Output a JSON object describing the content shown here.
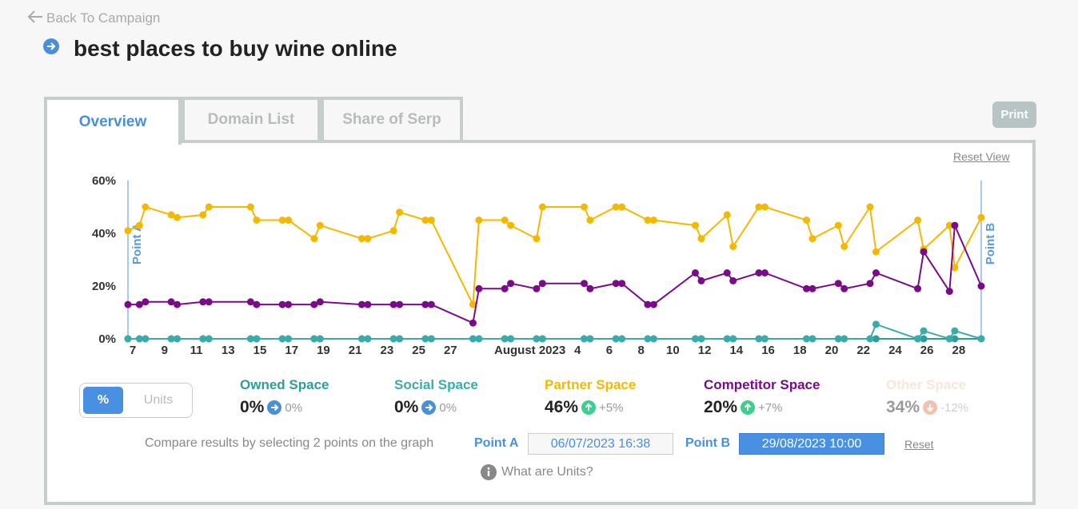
{
  "back_link": "Back To Campaign",
  "title": "best places to buy wine online",
  "tabs": [
    "Overview",
    "Domain List",
    "Share of Serp"
  ],
  "print": "Print",
  "reset_view": "Reset View",
  "chart_data": {
    "type": "line",
    "x": [
      "2023-07-06T16:38",
      "2023-07-07T10:00",
      "2023-07-07T19:00",
      "2023-07-09T10:00",
      "2023-07-09T19:00",
      "2023-07-11T10:00",
      "2023-07-11T19:00",
      "2023-07-14T10:00",
      "2023-07-14T19:00",
      "2023-07-16T10:00",
      "2023-07-16T19:00",
      "2023-07-18T10:00",
      "2023-07-18T19:00",
      "2023-07-21T10:00",
      "2023-07-21T19:00",
      "2023-07-23T10:00",
      "2023-07-23T19:00",
      "2023-07-25T10:00",
      "2023-07-25T19:00",
      "2023-07-28T10:00",
      "2023-07-28T19:00",
      "2023-07-30T10:00",
      "2023-07-30T19:00",
      "2023-08-01T10:00",
      "2023-08-01T19:00",
      "2023-08-04T10:00",
      "2023-08-04T19:00",
      "2023-08-06T10:00",
      "2023-08-06T19:00",
      "2023-08-08T10:00",
      "2023-08-08T19:00",
      "2023-08-11T10:00",
      "2023-08-11T19:00",
      "2023-08-13T10:00",
      "2023-08-13T19:00",
      "2023-08-15T10:00",
      "2023-08-15T19:00",
      "2023-08-18T10:00",
      "2023-08-18T19:00",
      "2023-08-20T10:00",
      "2023-08-20T19:00",
      "2023-08-22T10:00",
      "2023-08-22T19:00",
      "2023-08-25T10:00",
      "2023-08-25T19:00",
      "2023-08-27T10:00",
      "2023-08-27T18:00",
      "2023-08-29T10:00"
    ],
    "series": [
      {
        "name": "Owned Space",
        "color": "#2a9d9d",
        "values": [
          0,
          0,
          0,
          0,
          0,
          0,
          0,
          0,
          0,
          0,
          0,
          0,
          0,
          0,
          0,
          0,
          0,
          0,
          0,
          0,
          0,
          0,
          0,
          0,
          0,
          0,
          0,
          0,
          0,
          0,
          0,
          0,
          0,
          0,
          0,
          0,
          0,
          0,
          0,
          0,
          0,
          0,
          0,
          0,
          0,
          0,
          0,
          0
        ]
      },
      {
        "name": "Social Space",
        "color": "#3aabab",
        "values": [
          0,
          0,
          0,
          0,
          0,
          0,
          0,
          0,
          0,
          0,
          0,
          0,
          0,
          0,
          0,
          0,
          0,
          0,
          0,
          0,
          0,
          0,
          0,
          0,
          0,
          0,
          0,
          0,
          0,
          0,
          0,
          0,
          0,
          0,
          0,
          0,
          0,
          0,
          0,
          0,
          0,
          0,
          5.5,
          0,
          3,
          0,
          3,
          0
        ]
      },
      {
        "name": "Partner Space",
        "color": "#f5b800",
        "values": [
          41,
          43,
          50,
          47,
          46,
          47,
          50,
          50,
          45,
          45,
          45,
          38,
          43,
          38,
          38,
          41,
          48,
          45,
          45,
          13,
          45,
          45,
          43,
          38,
          50,
          50,
          45,
          50,
          50,
          45,
          45,
          43,
          38,
          47,
          35,
          50,
          50,
          45,
          38,
          43,
          35,
          50,
          33,
          45,
          34,
          43,
          27,
          46
        ]
      },
      {
        "name": "Competitor Space",
        "color": "#7a0a8a",
        "values": [
          13,
          13,
          14,
          14,
          13,
          14,
          14,
          14,
          13,
          13,
          13,
          13,
          14,
          13,
          13,
          13,
          13,
          13,
          13,
          6,
          19,
          19,
          21,
          19,
          21,
          21,
          19,
          21,
          21,
          13,
          13,
          25,
          22,
          25,
          22,
          25,
          25,
          19,
          19,
          21,
          19,
          21,
          25,
          19,
          33,
          18,
          43,
          20
        ]
      }
    ],
    "xlim": [
      "2023-07-06T16:38",
      "2023-08-29T10:00"
    ],
    "xticks": [
      {
        "value": "2023-07-07",
        "label": "7"
      },
      {
        "value": "2023-07-09",
        "label": "9"
      },
      {
        "value": "2023-07-11",
        "label": "11"
      },
      {
        "value": "2023-07-13",
        "label": "13"
      },
      {
        "value": "2023-07-15",
        "label": "15"
      },
      {
        "value": "2023-07-17",
        "label": "17"
      },
      {
        "value": "2023-07-19",
        "label": "19"
      },
      {
        "value": "2023-07-21",
        "label": "21"
      },
      {
        "value": "2023-07-23",
        "label": "23"
      },
      {
        "value": "2023-07-25",
        "label": "25"
      },
      {
        "value": "2023-07-27",
        "label": "27"
      },
      {
        "value": "2023-08-01",
        "label": "August 2023"
      },
      {
        "value": "2023-08-04",
        "label": "4"
      },
      {
        "value": "2023-08-06",
        "label": "6"
      },
      {
        "value": "2023-08-08",
        "label": "8"
      },
      {
        "value": "2023-08-10",
        "label": "10"
      },
      {
        "value": "2023-08-12",
        "label": "12"
      },
      {
        "value": "2023-08-14",
        "label": "14"
      },
      {
        "value": "2023-08-16",
        "label": "16"
      },
      {
        "value": "2023-08-18",
        "label": "18"
      },
      {
        "value": "2023-08-20",
        "label": "20"
      },
      {
        "value": "2023-08-22",
        "label": "22"
      },
      {
        "value": "2023-08-24",
        "label": "24"
      },
      {
        "value": "2023-08-26",
        "label": "26"
      },
      {
        "value": "2023-08-28",
        "label": "28"
      }
    ],
    "ylim": [
      0,
      60
    ],
    "yticks": [
      {
        "value": 0,
        "label": "0%"
      },
      {
        "value": 20,
        "label": "20%"
      },
      {
        "value": 40,
        "label": "40%"
      },
      {
        "value": 60,
        "label": "60%"
      }
    ],
    "markers": [
      {
        "label": "Point A",
        "x": "2023-07-06T16:38"
      },
      {
        "label": "Point B",
        "x": "2023-08-29T10:00"
      }
    ]
  },
  "toggle": [
    "%",
    "Units"
  ],
  "stats": [
    {
      "name": "Owned Space",
      "value": "0%",
      "change": "0%",
      "trend": "flat",
      "color": "#2e9c9c"
    },
    {
      "name": "Social Space",
      "value": "0%",
      "change": "0%",
      "trend": "flat",
      "color": "#3aabab"
    },
    {
      "name": "Partner Space",
      "value": "46%",
      "change": "+5%",
      "trend": "up",
      "color": "#f5b800"
    },
    {
      "name": "Competitor Space",
      "value": "20%",
      "change": "+7%",
      "trend": "up",
      "color": "#7a0a8a"
    },
    {
      "name": "Other Space",
      "value": "34%",
      "change": "-12%",
      "trend": "down",
      "color": "#f5c6b4",
      "disabled": true
    }
  ],
  "compare": {
    "hint": "Compare results by selecting 2 points on the graph",
    "point_a_label": "Point A",
    "point_a_value": "06/07/2023 16:38",
    "point_b_label": "Point B",
    "point_b_value": "29/08/2023 10:00",
    "reset": "Reset"
  },
  "help": "What are Units?"
}
